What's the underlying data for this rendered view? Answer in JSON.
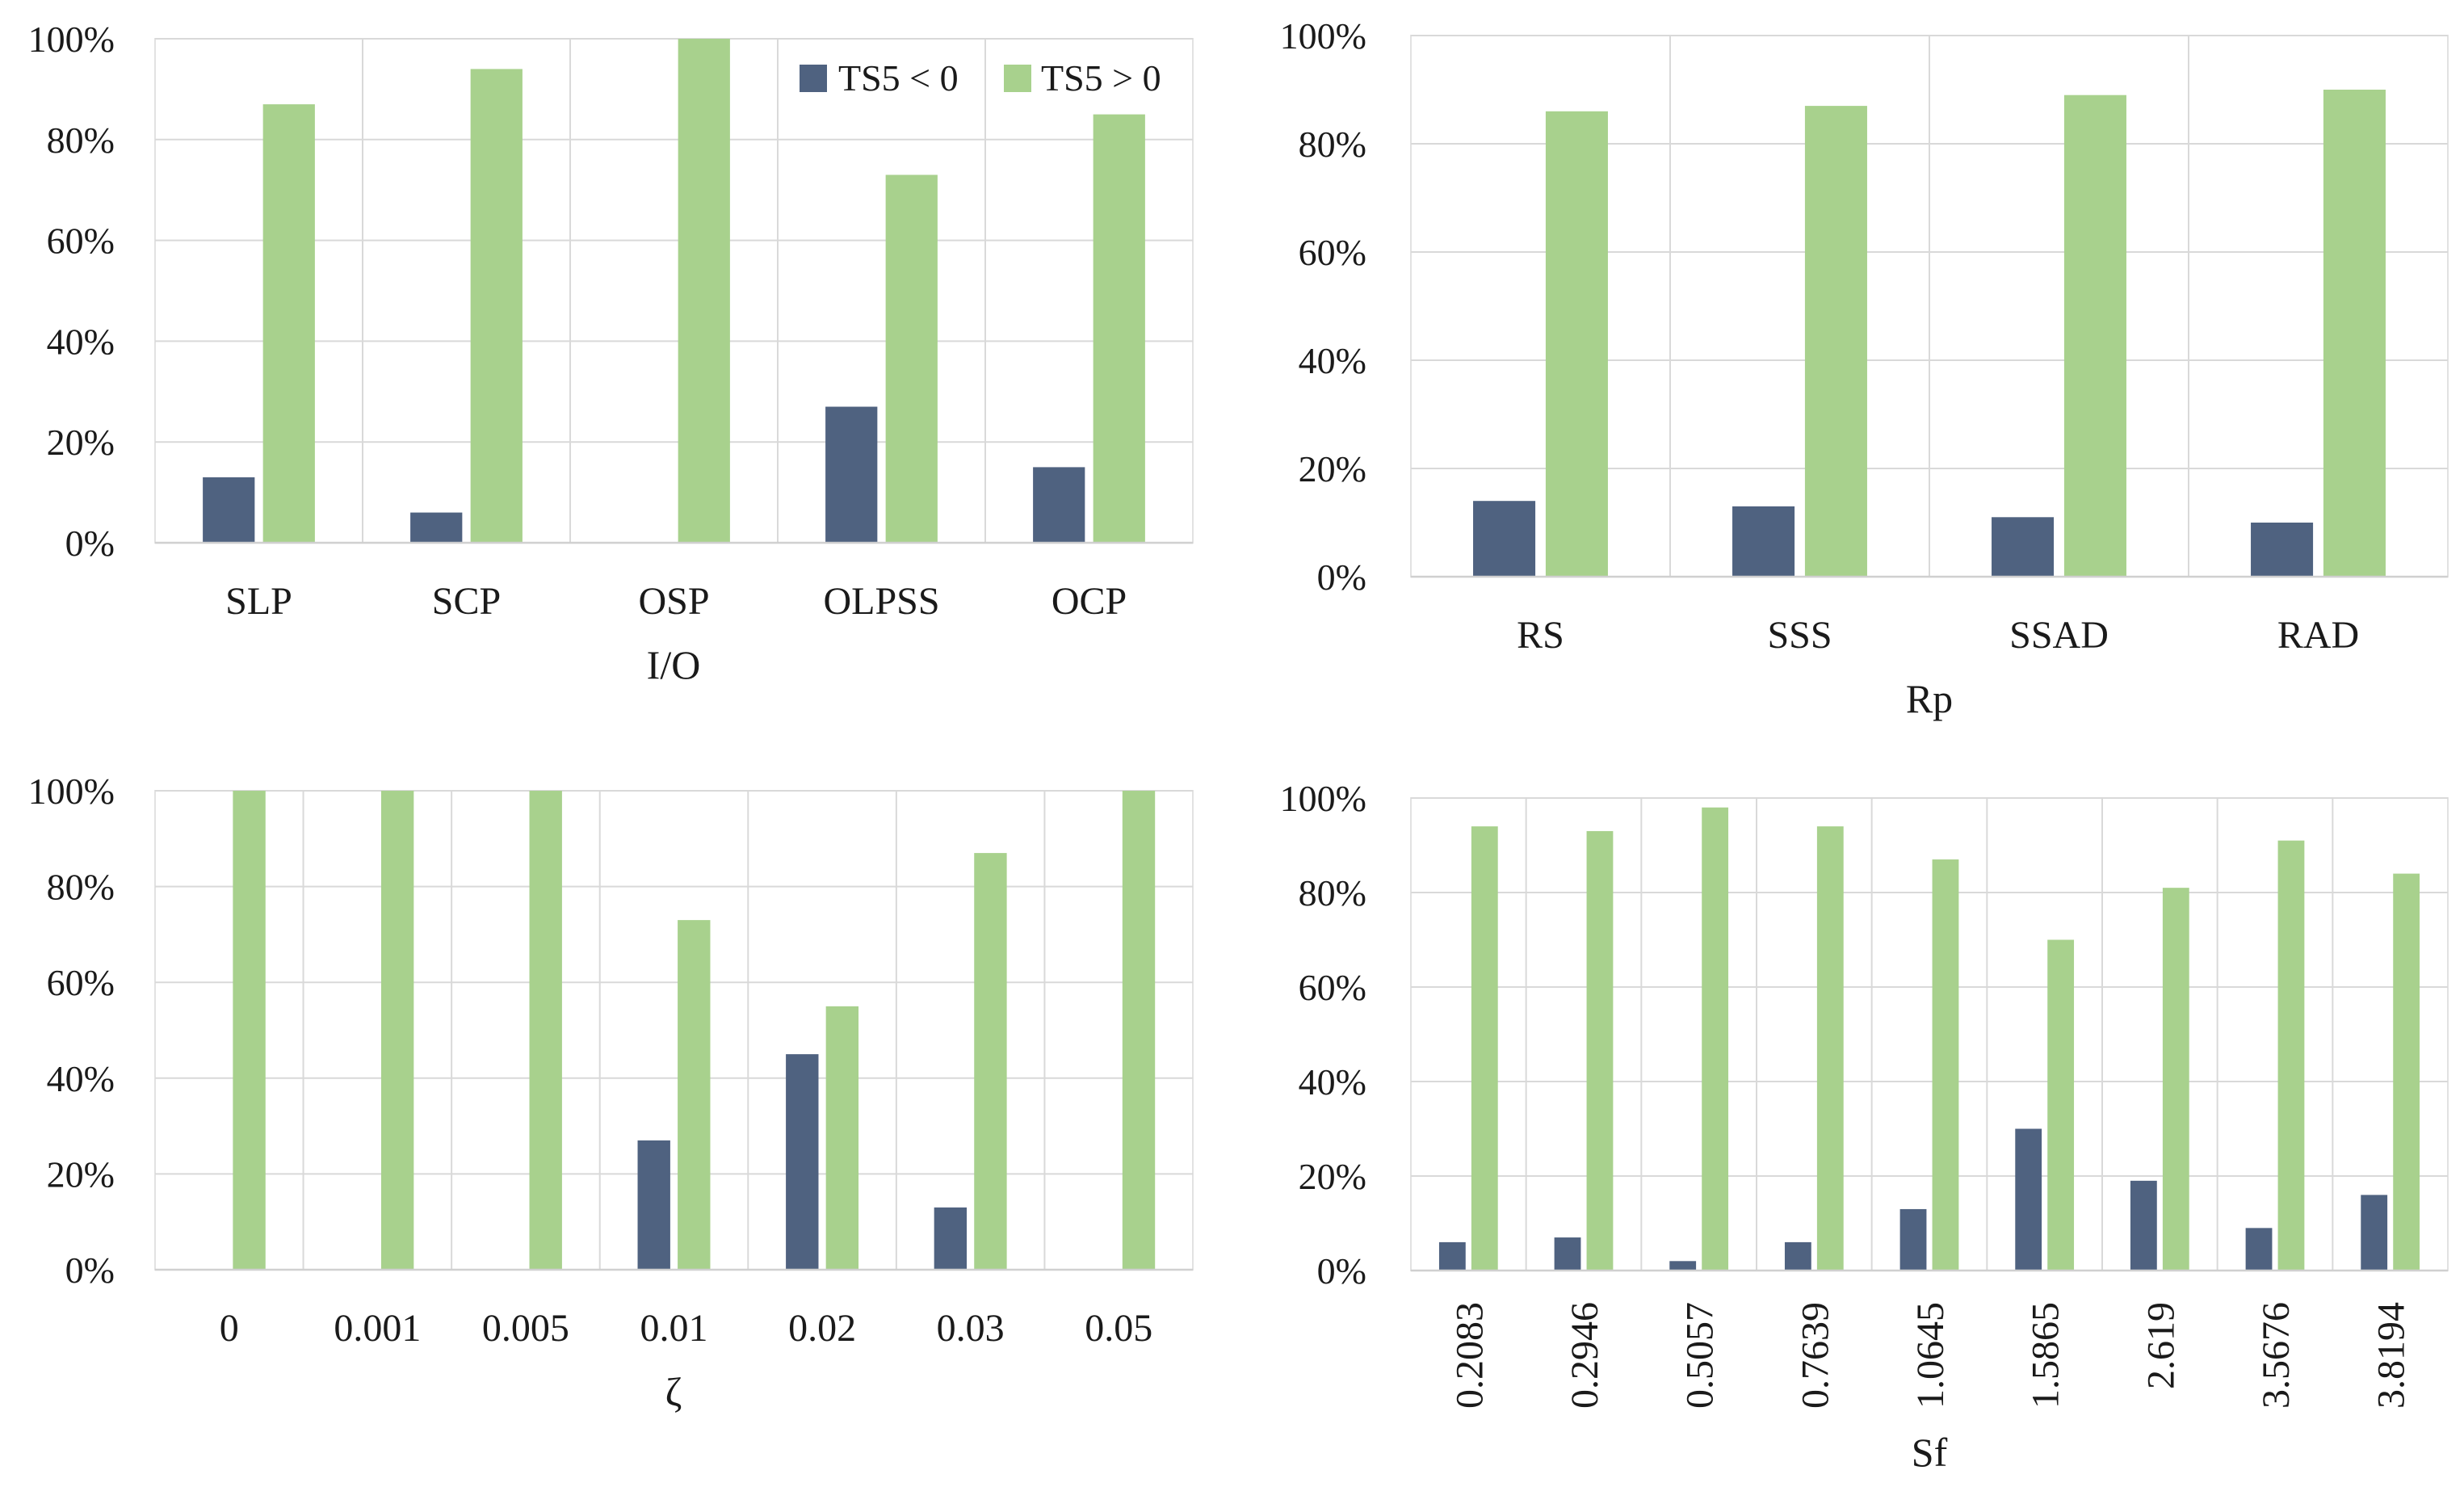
{
  "colors": {
    "neg": "#4f6280",
    "pos": "#a8d18d"
  },
  "legend": {
    "neg_label": "TS5 < 0",
    "pos_label": "TS5 > 0"
  },
  "chart_data": [
    {
      "type": "bar",
      "id": "io",
      "xlabel": "I/O",
      "ylim": [
        0,
        100
      ],
      "yticks": [
        "0%",
        "20%",
        "40%",
        "60%",
        "80%",
        "100%"
      ],
      "categories": [
        "SLP",
        "SCP",
        "OSP",
        "OLPSS",
        "OCP"
      ],
      "series": [
        {
          "name": "TS5 < 0",
          "values": [
            13,
            6,
            0,
            27,
            15
          ]
        },
        {
          "name": "TS5 > 0",
          "values": [
            87,
            94,
            100,
            73,
            85
          ]
        }
      ],
      "legend_position": "top-right"
    },
    {
      "type": "bar",
      "id": "rp",
      "xlabel": "Rp",
      "ylim": [
        0,
        100
      ],
      "yticks": [
        "0%",
        "20%",
        "40%",
        "60%",
        "80%",
        "100%"
      ],
      "categories": [
        "RS",
        "SSS",
        "SSAD",
        "RAD"
      ],
      "series": [
        {
          "name": "TS5 < 0",
          "values": [
            14,
            13,
            11,
            10
          ]
        },
        {
          "name": "TS5 > 0",
          "values": [
            86,
            87,
            89,
            90
          ]
        }
      ]
    },
    {
      "type": "bar",
      "id": "zeta",
      "xlabel": "ζ",
      "ylim": [
        0,
        100
      ],
      "yticks": [
        "0%",
        "20%",
        "40%",
        "60%",
        "80%",
        "100%"
      ],
      "categories": [
        "0",
        "0.001",
        "0.005",
        "0.01",
        "0.02",
        "0.03",
        "0.05"
      ],
      "series": [
        {
          "name": "TS5 < 0",
          "values": [
            0,
            0,
            0,
            27,
            45,
            13,
            0
          ]
        },
        {
          "name": "TS5 > 0",
          "values": [
            100,
            100,
            100,
            73,
            55,
            87,
            100
          ]
        }
      ]
    },
    {
      "type": "bar",
      "id": "sf",
      "xlabel": "Sf",
      "ylim": [
        0,
        100
      ],
      "yticks": [
        "0%",
        "20%",
        "40%",
        "60%",
        "80%",
        "100%"
      ],
      "categories": [
        "0.2083",
        "0.2946",
        "0.5057",
        "0.7639",
        "1.0645",
        "1.5865",
        "2.619",
        "3.5676",
        "3.8194"
      ],
      "series": [
        {
          "name": "TS5 < 0",
          "values": [
            6,
            7,
            2,
            6,
            13,
            30,
            19,
            9,
            16
          ]
        },
        {
          "name": "TS5 > 0",
          "values": [
            94,
            93,
            98,
            94,
            87,
            70,
            81,
            91,
            84
          ]
        }
      ],
      "rotated_tick_labels": true
    }
  ]
}
